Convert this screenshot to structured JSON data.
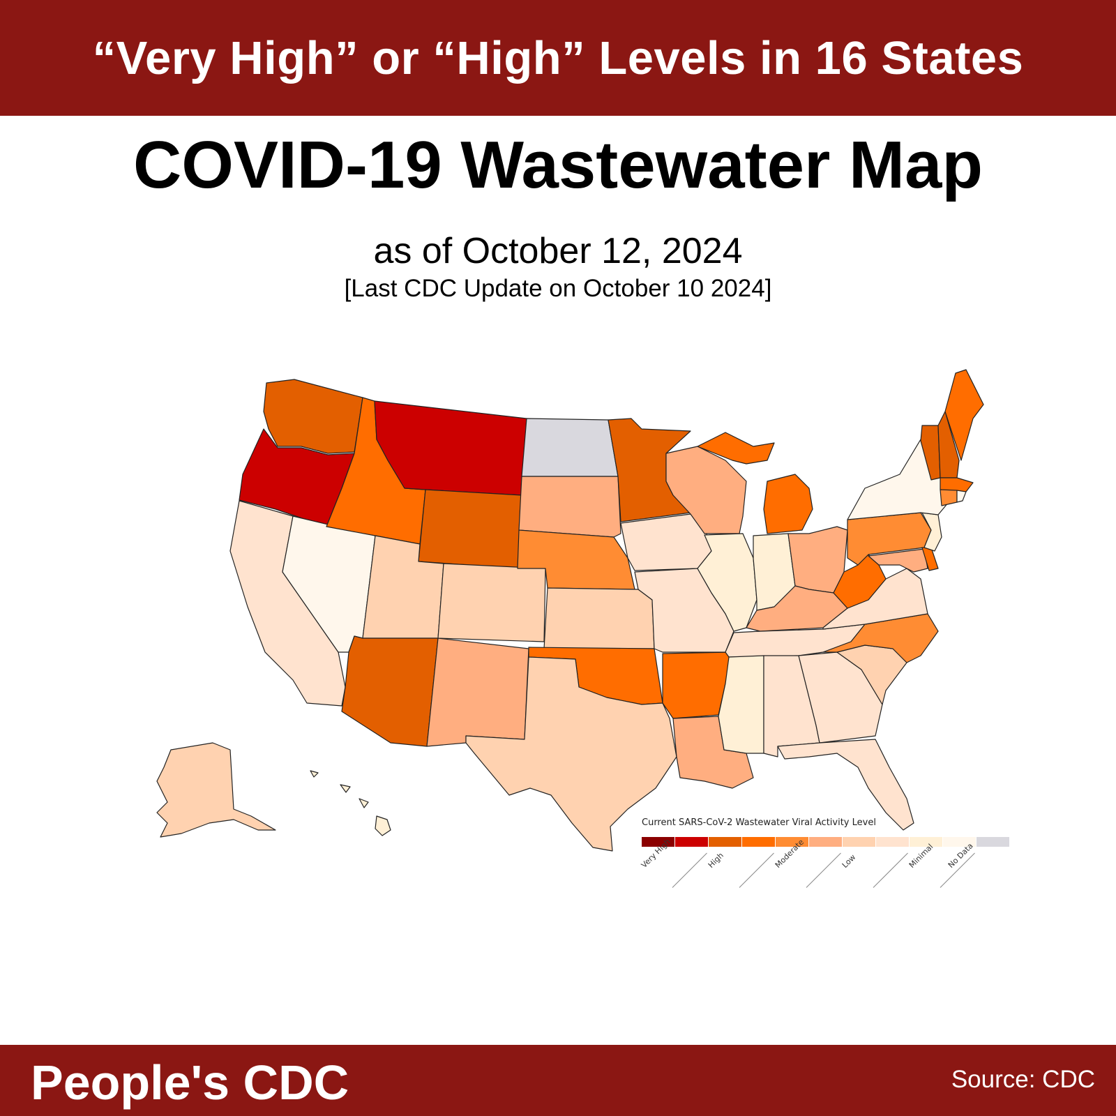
{
  "header": {
    "banner_text": "“Very High” or “High” Levels in 16 States"
  },
  "title": "COVID-19 Wastewater Map",
  "date_line": "as of October 12, 2024",
  "update_line": "[Last CDC Update on October 10 2024]",
  "legend": {
    "title": "Current SARS-CoV-2 Wastewater Viral Activity Level",
    "colors": [
      "#8b0000",
      "#cc0000",
      "#e35f00",
      "#ff6d00",
      "#ff8c33",
      "#ffae80",
      "#ffd2b0",
      "#ffe3cf",
      "#fff0d6",
      "#fff7ec",
      "#d9d8de"
    ],
    "labels": [
      "Very High",
      "High",
      "Moderate",
      "Low",
      "Minimal",
      "No Data"
    ]
  },
  "footer": {
    "brand": "People's CDC",
    "source": "Source: CDC"
  }
}
